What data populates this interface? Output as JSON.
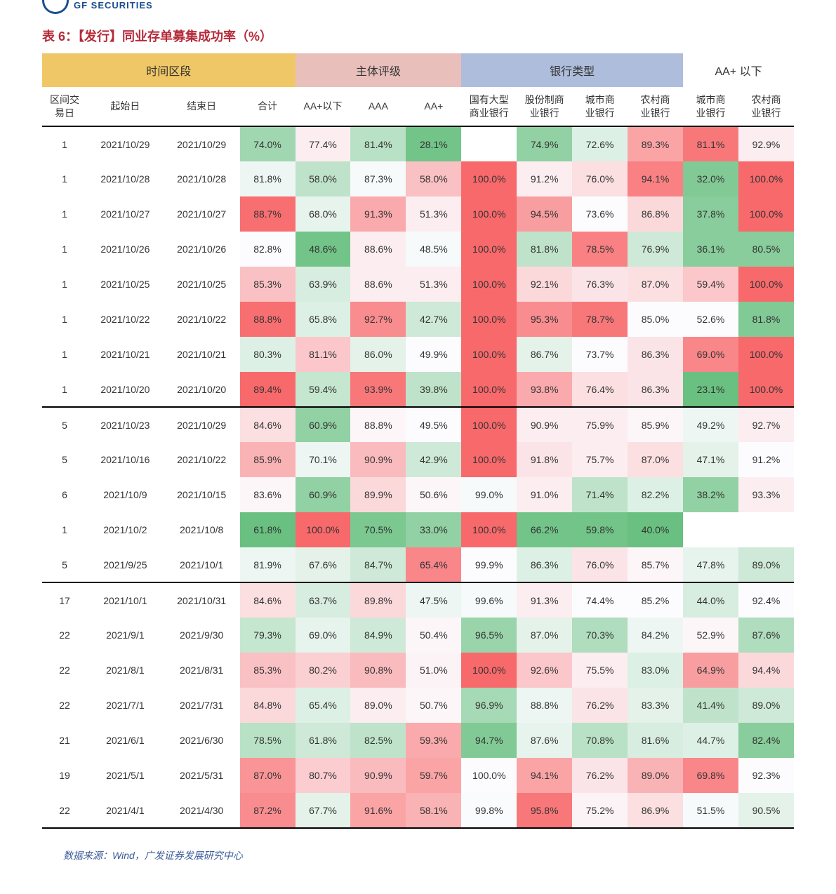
{
  "header": {
    "logo_text": "GF SECURITIES",
    "right_text": ""
  },
  "title": "表 6：【发行】同业存单募集成功率（%）",
  "source": "数据来源：Wind，广发证券发展研究中心",
  "table": {
    "group_headers": [
      {
        "label": "时间区段",
        "span": 4,
        "bg": "#f0c766"
      },
      {
        "label": "主体评级",
        "span": 3,
        "bg": "#e9bfbc"
      },
      {
        "label": "银行类型",
        "span": 4,
        "bg": "#aebddb"
      },
      {
        "label": "AA+ 以下",
        "span": 2,
        "bg": "#ffffff"
      }
    ],
    "columns": [
      "区间交\n易日",
      "起始日",
      "结束日",
      "合计",
      "AA+以下",
      "AAA",
      "AA+",
      "国有大型\n商业银行",
      "股份制商\n业银行",
      "城市商\n业银行",
      "农村商\n业银行",
      "城市商\n业银行",
      "农村商\n业银行"
    ],
    "col_widths": [
      "c-narrow",
      "c-date",
      "c-date",
      "c-val",
      "c-val",
      "c-val",
      "c-val",
      "c-val",
      "c-val",
      "c-val",
      "c-val",
      "c-val",
      "c-val"
    ],
    "row_separators_after": [
      7,
      12
    ],
    "heat_columns_start": 3,
    "color_scale": {
      "min": "#63be7b",
      "mid": "#fcfcff",
      "max": "#f8696b"
    },
    "rows": [
      {
        "cells": [
          "1",
          "2021/10/29",
          "2021/10/29",
          "74.0%",
          "77.4%",
          "81.4%",
          "28.1%",
          "",
          "74.9%",
          "72.6%",
          "89.3%",
          "81.1%",
          "92.9%"
        ],
        "heat": [
          0.2,
          0.55,
          0.28,
          0.05,
          null,
          0.15,
          0.4,
          0.8,
          0.95,
          0.55
        ]
      },
      {
        "cells": [
          "1",
          "2021/10/28",
          "2021/10/28",
          "81.8%",
          "58.0%",
          "87.3%",
          "58.0%",
          "100.0%",
          "91.2%",
          "76.0%",
          "94.1%",
          "32.0%",
          "100.0%"
        ],
        "heat": [
          0.45,
          0.3,
          0.48,
          0.7,
          1.0,
          0.55,
          0.6,
          0.92,
          0.1,
          1.0
        ]
      },
      {
        "cells": [
          "1",
          "2021/10/27",
          "2021/10/27",
          "88.7%",
          "68.0%",
          "91.3%",
          "51.3%",
          "100.0%",
          "94.5%",
          "73.6%",
          "86.8%",
          "37.8%",
          "100.0%"
        ],
        "heat": [
          0.98,
          0.43,
          0.78,
          0.55,
          1.0,
          0.82,
          0.5,
          0.62,
          0.12,
          1.0
        ]
      },
      {
        "cells": [
          "1",
          "2021/10/26",
          "2021/10/26",
          "82.8%",
          "48.6%",
          "88.6%",
          "48.5%",
          "100.0%",
          "81.8%",
          "78.5%",
          "76.9%",
          "36.1%",
          "80.5%"
        ],
        "heat": [
          0.5,
          0.05,
          0.55,
          0.48,
          1.0,
          0.3,
          0.92,
          0.35,
          0.12,
          0.12
        ]
      },
      {
        "cells": [
          "1",
          "2021/10/25",
          "2021/10/25",
          "85.3%",
          "63.9%",
          "88.6%",
          "51.3%",
          "100.0%",
          "92.1%",
          "76.3%",
          "87.0%",
          "59.4%",
          "100.0%"
        ],
        "heat": [
          0.7,
          0.38,
          0.55,
          0.55,
          1.0,
          0.62,
          0.58,
          0.6,
          0.68,
          1.0
        ]
      },
      {
        "cells": [
          "1",
          "2021/10/22",
          "2021/10/22",
          "88.8%",
          "65.8%",
          "92.7%",
          "42.7%",
          "100.0%",
          "95.3%",
          "78.7%",
          "85.0%",
          "52.6%",
          "81.8%"
        ],
        "heat": [
          0.98,
          0.4,
          0.88,
          0.35,
          1.0,
          0.88,
          0.95,
          0.5,
          0.5,
          0.1
        ]
      },
      {
        "cells": [
          "1",
          "2021/10/21",
          "2021/10/21",
          "80.3%",
          "81.1%",
          "86.0%",
          "49.9%",
          "100.0%",
          "86.7%",
          "73.7%",
          "86.3%",
          "69.0%",
          "100.0%"
        ],
        "heat": [
          0.4,
          0.68,
          0.42,
          0.5,
          1.0,
          0.42,
          0.5,
          0.58,
          0.9,
          1.0
        ]
      },
      {
        "cells": [
          "1",
          "2021/10/20",
          "2021/10/20",
          "89.4%",
          "59.4%",
          "93.9%",
          "39.8%",
          "100.0%",
          "93.8%",
          "76.4%",
          "86.3%",
          "23.1%",
          "100.0%"
        ],
        "heat": [
          1.0,
          0.32,
          0.95,
          0.3,
          1.0,
          0.78,
          0.6,
          0.58,
          0.02,
          1.0
        ]
      },
      {
        "cells": [
          "5",
          "2021/10/23",
          "2021/10/29",
          "84.6%",
          "60.9%",
          "88.8%",
          "49.5%",
          "100.0%",
          "90.9%",
          "75.9%",
          "85.9%",
          "49.2%",
          "92.7%"
        ],
        "heat": [
          0.6,
          0.15,
          0.52,
          0.5,
          1.0,
          0.55,
          0.55,
          0.52,
          0.45,
          0.55
        ]
      },
      {
        "cells": [
          "5",
          "2021/10/16",
          "2021/10/22",
          "85.9%",
          "70.1%",
          "90.9%",
          "42.9%",
          "100.0%",
          "91.8%",
          "75.7%",
          "87.0%",
          "47.1%",
          "91.2%"
        ],
        "heat": [
          0.75,
          0.45,
          0.72,
          0.35,
          1.0,
          0.58,
          0.55,
          0.6,
          0.42,
          0.5
        ]
      },
      {
        "cells": [
          "6",
          "2021/10/9",
          "2021/10/15",
          "83.6%",
          "60.9%",
          "89.9%",
          "50.6%",
          "99.0%",
          "91.0%",
          "71.4%",
          "82.2%",
          "38.2%",
          "93.3%"
        ],
        "heat": [
          0.52,
          0.15,
          0.62,
          0.52,
          0.48,
          0.55,
          0.3,
          0.4,
          0.15,
          0.55
        ]
      },
      {
        "cells": [
          "1",
          "2021/10/2",
          "2021/10/8",
          "61.8%",
          "100.0%",
          "70.5%",
          "33.0%",
          "100.0%",
          "66.2%",
          "59.8%",
          "40.0%",
          "",
          ""
        ],
        "heat": [
          0.02,
          1.0,
          0.08,
          0.15,
          1.0,
          0.05,
          0.05,
          0.02,
          null,
          null
        ]
      },
      {
        "cells": [
          "5",
          "2021/9/25",
          "2021/10/1",
          "81.9%",
          "67.6%",
          "84.7%",
          "65.4%",
          "99.9%",
          "86.3%",
          "76.0%",
          "85.7%",
          "47.8%",
          "89.0%"
        ],
        "heat": [
          0.45,
          0.42,
          0.35,
          0.9,
          0.5,
          0.4,
          0.58,
          0.52,
          0.43,
          0.35
        ]
      },
      {
        "cells": [
          "17",
          "2021/10/1",
          "2021/10/31",
          "84.6%",
          "63.7%",
          "89.8%",
          "47.5%",
          "99.6%",
          "91.3%",
          "74.4%",
          "85.2%",
          "44.0%",
          "92.4%"
        ],
        "heat": [
          0.6,
          0.38,
          0.62,
          0.45,
          0.48,
          0.55,
          0.5,
          0.5,
          0.38,
          0.5
        ]
      },
      {
        "cells": [
          "22",
          "2021/9/1",
          "2021/9/30",
          "79.3%",
          "69.0%",
          "84.9%",
          "50.4%",
          "96.5%",
          "87.0%",
          "70.3%",
          "84.2%",
          "52.9%",
          "87.6%"
        ],
        "heat": [
          0.32,
          0.43,
          0.35,
          0.52,
          0.18,
          0.42,
          0.25,
          0.45,
          0.52,
          0.25
        ]
      },
      {
        "cells": [
          "22",
          "2021/8/1",
          "2021/8/31",
          "85.3%",
          "80.2%",
          "90.8%",
          "51.0%",
          "100.0%",
          "92.6%",
          "75.5%",
          "83.0%",
          "64.9%",
          "94.4%"
        ],
        "heat": [
          0.7,
          0.65,
          0.72,
          0.53,
          1.0,
          0.68,
          0.55,
          0.4,
          0.82,
          0.62
        ]
      },
      {
        "cells": [
          "22",
          "2021/7/1",
          "2021/7/31",
          "84.8%",
          "65.4%",
          "89.0%",
          "50.7%",
          "96.9%",
          "88.8%",
          "76.2%",
          "83.3%",
          "41.4%",
          "89.0%"
        ],
        "heat": [
          0.62,
          0.4,
          0.55,
          0.52,
          0.22,
          0.45,
          0.58,
          0.42,
          0.3,
          0.35
        ]
      },
      {
        "cells": [
          "21",
          "2021/6/1",
          "2021/6/30",
          "78.5%",
          "61.8%",
          "82.5%",
          "59.3%",
          "94.7%",
          "87.6%",
          "70.8%",
          "81.6%",
          "44.7%",
          "82.4%"
        ],
        "heat": [
          0.28,
          0.35,
          0.3,
          0.78,
          0.1,
          0.43,
          0.28,
          0.38,
          0.4,
          0.12
        ]
      },
      {
        "cells": [
          "19",
          "2021/5/1",
          "2021/5/31",
          "87.0%",
          "80.7%",
          "90.9%",
          "59.7%",
          "100.0%",
          "94.1%",
          "76.2%",
          "89.0%",
          "69.8%",
          "92.3%"
        ],
        "heat": [
          0.85,
          0.66,
          0.72,
          0.8,
          0.5,
          0.8,
          0.58,
          0.75,
          0.9,
          0.5
        ]
      },
      {
        "cells": [
          "22",
          "2021/4/1",
          "2021/4/30",
          "87.2%",
          "67.7%",
          "91.6%",
          "58.1%",
          "99.8%",
          "95.8%",
          "75.2%",
          "86.9%",
          "51.5%",
          "90.5%"
        ],
        "heat": [
          0.88,
          0.42,
          0.8,
          0.75,
          0.49,
          0.95,
          0.53,
          0.6,
          0.48,
          0.42
        ]
      }
    ]
  }
}
